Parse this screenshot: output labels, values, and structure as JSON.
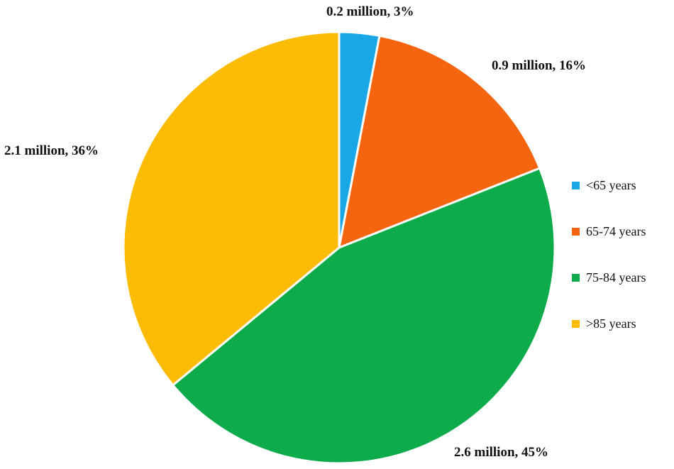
{
  "chart_data": {
    "type": "pie",
    "categories": [
      "<65 years",
      "65-74 years",
      "75-84 years",
      ">85 years"
    ],
    "series": [
      {
        "values_million": [
          0.2,
          0.9,
          2.6,
          2.1
        ],
        "percent": [
          3,
          16,
          45,
          36
        ]
      }
    ],
    "data_labels": [
      "0.2 million, 3%",
      "0.9 million, 16%",
      "2.6 million, 45%",
      "2.1 million, 36%"
    ],
    "colors": [
      "#1aa7e8",
      "#f5650f",
      "#0eab4b",
      "#fcbc05"
    ],
    "legend_placement": "right",
    "start_angle": "12 o'clock",
    "direction": "clockwise"
  }
}
